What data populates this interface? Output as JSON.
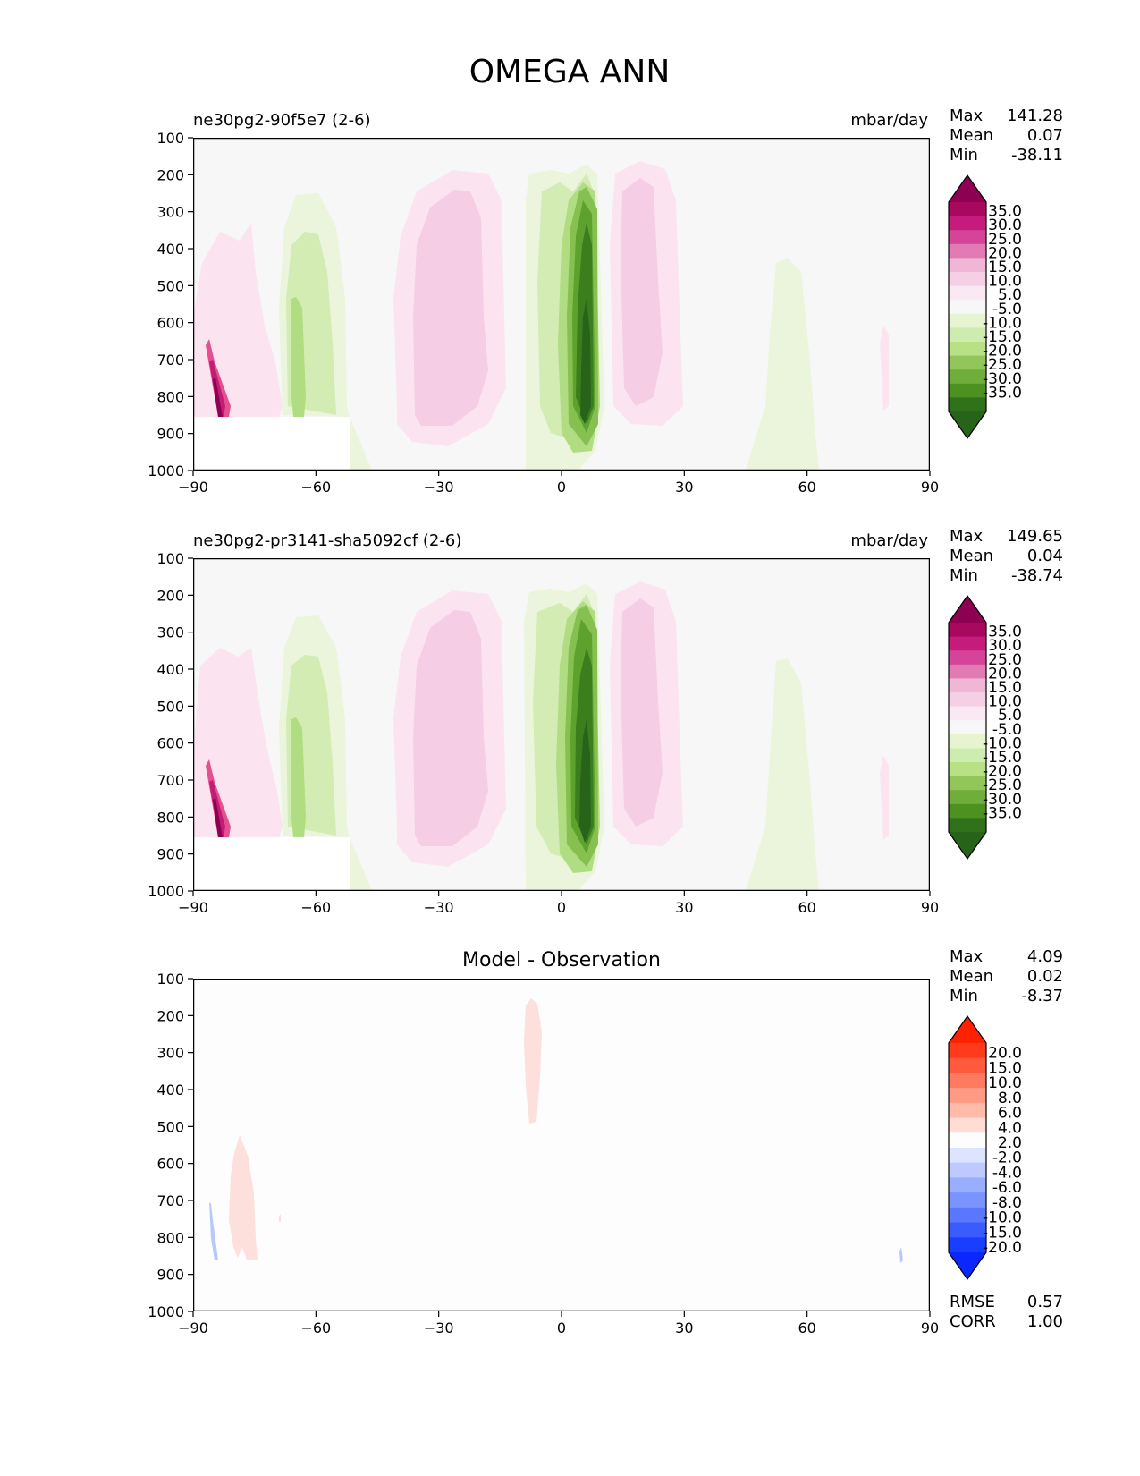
{
  "title": "OMEGA ANN",
  "axis": {
    "x_ticks": [
      "−90",
      "−60",
      "−30",
      "0",
      "30",
      "60",
      "90"
    ],
    "y_ticks": [
      "100",
      "200",
      "300",
      "400",
      "500",
      "600",
      "700",
      "800",
      "900",
      "1000"
    ]
  },
  "colors": {
    "panel_bg": "#f7f7f7",
    "diff_bg": "#fdfdfd",
    "pink_1": "#fbe4f0",
    "pink_2": "#f5cde4",
    "green_1": "#eaf5dc",
    "green_2": "#d2ecb4",
    "green_3": "#b0dc82",
    "green_4": "#86c050",
    "green_5": "#5ea22e",
    "green_6": "#3a7e1e",
    "green_7": "#27641a",
    "magenta_1": "#e3508f",
    "magenta_2": "#c31c74",
    "magenta_3": "#8e0152",
    "diff_red": "#fde0dc",
    "diff_blue": "#b8c8ff"
  },
  "chart_data": [
    {
      "type": "contour",
      "panel": "test",
      "title_left": "ne30pg2-90f5e7 (2-6)",
      "units": "mbar/day",
      "stats": {
        "max_label": "Max",
        "max": "141.28",
        "mean_label": "Mean",
        "mean": "0.07",
        "min_label": "Min",
        "min": "-38.11"
      },
      "xlim": [
        -90,
        90
      ],
      "ylim": [
        1000,
        100
      ],
      "colorbar": {
        "labels": [
          "35.0",
          "30.0",
          "25.0",
          "20.0",
          "15.0",
          "10.0",
          "5.0",
          "-5.0",
          "-10.0",
          "-15.0",
          "-20.0",
          "-25.0",
          "-30.0",
          "-35.0"
        ],
        "colors": [
          "#8e0152",
          "#a9085f",
          "#c51b7d",
          "#d6449a",
          "#e27ab3",
          "#f0b6d5",
          "#f5cfe4",
          "#fae8f2",
          "#f7f7f7",
          "#e6f5d0",
          "#cfecb0",
          "#b8e186",
          "#92c65a",
          "#6fae3a",
          "#4d9221",
          "#2f7219",
          "#276419"
        ]
      }
    },
    {
      "type": "contour",
      "panel": "reference",
      "title_left": "ne30pg2-pr3141-sha5092cf (2-6)",
      "units": "mbar/day",
      "stats": {
        "max_label": "Max",
        "max": "149.65",
        "mean_label": "Mean",
        "mean": "0.04",
        "min_label": "Min",
        "min": "-38.74"
      },
      "xlim": [
        -90,
        90
      ],
      "ylim": [
        1000,
        100
      ],
      "colorbar": {
        "labels": [
          "35.0",
          "30.0",
          "25.0",
          "20.0",
          "15.0",
          "10.0",
          "5.0",
          "-5.0",
          "-10.0",
          "-15.0",
          "-20.0",
          "-25.0",
          "-30.0",
          "-35.0"
        ],
        "colors": [
          "#8e0152",
          "#a9085f",
          "#c51b7d",
          "#d6449a",
          "#e27ab3",
          "#f0b6d5",
          "#f5cfe4",
          "#fae8f2",
          "#f7f7f7",
          "#e6f5d0",
          "#cfecb0",
          "#b8e186",
          "#92c65a",
          "#6fae3a",
          "#4d9221",
          "#2f7219",
          "#276419"
        ]
      }
    },
    {
      "type": "contour",
      "panel": "difference",
      "title_center": "Model - Observation",
      "stats": {
        "max_label": "Max",
        "max": "4.09",
        "mean_label": "Mean",
        "mean": "0.02",
        "min_label": "Min",
        "min": "-8.37"
      },
      "metrics": {
        "rmse_label": "RMSE",
        "rmse": "0.57",
        "corr_label": "CORR",
        "corr": "1.00"
      },
      "xlim": [
        -90,
        90
      ],
      "ylim": [
        1000,
        100
      ],
      "colorbar": {
        "labels": [
          "20.0",
          "15.0",
          "10.0",
          "8.0",
          "6.0",
          "4.0",
          "2.0",
          "-2.0",
          "-4.0",
          "-6.0",
          "-8.0",
          "-10.0",
          "-15.0",
          "-20.0"
        ],
        "colors": [
          "#ff2200",
          "#ff3b1c",
          "#ff5a3c",
          "#ff7a5e",
          "#ff9a84",
          "#ffbaa8",
          "#ffdcd4",
          "#fdfdfd",
          "#dde4ff",
          "#bccaff",
          "#9aaeff",
          "#7a93ff",
          "#5a78ff",
          "#3a5cff",
          "#1a3eff",
          "#0a28ff"
        ]
      }
    }
  ]
}
